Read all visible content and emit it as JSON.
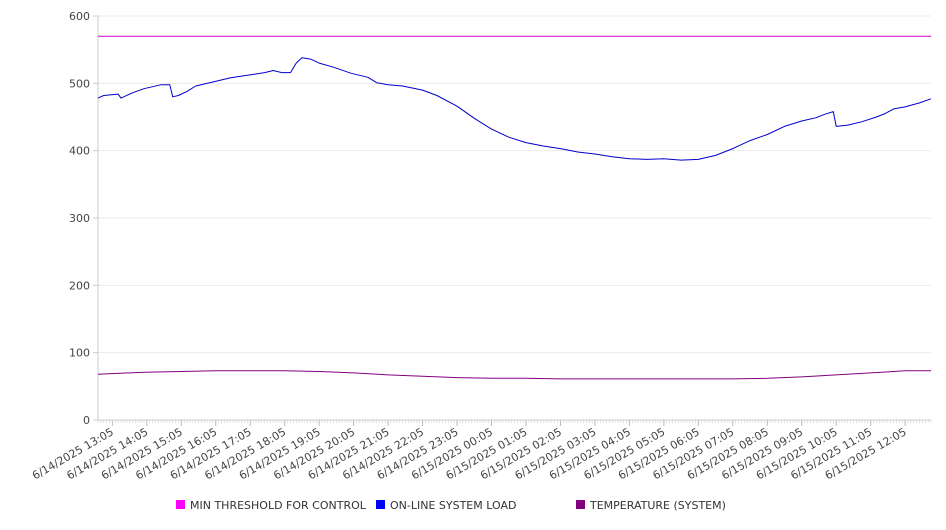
{
  "chart_data": {
    "type": "line",
    "title": "",
    "xlabel": "",
    "ylabel": "",
    "ylim": [
      0,
      600
    ],
    "y_ticks": [
      0,
      100,
      200,
      300,
      400,
      500,
      600
    ],
    "grid": true,
    "legend_position": "bottom",
    "x_start": "6/14/2025 12:40",
    "x_end": "6/15/2025 12:50",
    "x_tick_labels": [
      "6/14/2025 13:05",
      "6/14/2025 14:05",
      "6/14/2025 15:05",
      "6/14/2025 16:05",
      "6/14/2025 17:05",
      "6/14/2025 18:05",
      "6/14/2025 19:05",
      "6/14/2025 20:05",
      "6/14/2025 21:05",
      "6/14/2025 22:05",
      "6/14/2025 23:05",
      "6/15/2025 00:05",
      "6/15/2025 01:05",
      "6/15/2025 02:05",
      "6/15/2025 03:05",
      "6/15/2025 04:05",
      "6/15/2025 05:05",
      "6/15/2025 06:05",
      "6/15/2025 07:05",
      "6/15/2025 08:05",
      "6/15/2025 09:05",
      "6/15/2025 10:05",
      "6/15/2025 11:05",
      "6/15/2025 12:05"
    ],
    "series": [
      {
        "name": "MIN THRESHOLD FOR CONTROL",
        "color": "#cc00cc",
        "legend_color": "#ff00ff",
        "points": [
          [
            "6/14/2025 12:40",
            570
          ],
          [
            "6/15/2025 12:50",
            570
          ]
        ]
      },
      {
        "name": "ON-LINE SYSTEM LOAD",
        "color": "#0000cc",
        "legend_color": "#0000ff",
        "points": [
          [
            "6/14/2025 12:40",
            478
          ],
          [
            "6/14/2025 12:50",
            482
          ],
          [
            "6/14/2025 13:15",
            484
          ],
          [
            "6/14/2025 13:20",
            478
          ],
          [
            "6/14/2025 13:40",
            486
          ],
          [
            "6/14/2025 14:00",
            492
          ],
          [
            "6/14/2025 14:30",
            498
          ],
          [
            "6/14/2025 14:45",
            498
          ],
          [
            "6/14/2025 14:50",
            480
          ],
          [
            "6/14/2025 15:00",
            482
          ],
          [
            "6/14/2025 15:15",
            488
          ],
          [
            "6/14/2025 15:30",
            496
          ],
          [
            "6/14/2025 16:00",
            502
          ],
          [
            "6/14/2025 16:30",
            508
          ],
          [
            "6/14/2025 17:00",
            512
          ],
          [
            "6/14/2025 17:30",
            516
          ],
          [
            "6/14/2025 17:45",
            519
          ],
          [
            "6/14/2025 18:00",
            516
          ],
          [
            "6/14/2025 18:15",
            516
          ],
          [
            "6/14/2025 18:25",
            530
          ],
          [
            "6/14/2025 18:35",
            538
          ],
          [
            "6/14/2025 18:50",
            536
          ],
          [
            "6/14/2025 19:05",
            530
          ],
          [
            "6/14/2025 19:30",
            524
          ],
          [
            "6/14/2025 20:00",
            515
          ],
          [
            "6/14/2025 20:30",
            509
          ],
          [
            "6/14/2025 20:45",
            501
          ],
          [
            "6/14/2025 21:05",
            498
          ],
          [
            "6/14/2025 21:30",
            496
          ],
          [
            "6/14/2025 22:05",
            490
          ],
          [
            "6/14/2025 22:30",
            482
          ],
          [
            "6/14/2025 23:05",
            466
          ],
          [
            "6/14/2025 23:35",
            448
          ],
          [
            "6/15/2025 00:05",
            432
          ],
          [
            "6/15/2025 00:35",
            420
          ],
          [
            "6/15/2025 01:05",
            412
          ],
          [
            "6/15/2025 01:35",
            407
          ],
          [
            "6/15/2025 02:05",
            403
          ],
          [
            "6/15/2025 02:35",
            398
          ],
          [
            "6/15/2025 03:05",
            395
          ],
          [
            "6/15/2025 03:35",
            391
          ],
          [
            "6/15/2025 04:05",
            388
          ],
          [
            "6/15/2025 04:35",
            387
          ],
          [
            "6/15/2025 05:05",
            388
          ],
          [
            "6/15/2025 05:35",
            386
          ],
          [
            "6/15/2025 06:05",
            387
          ],
          [
            "6/15/2025 06:35",
            393
          ],
          [
            "6/15/2025 07:05",
            403
          ],
          [
            "6/15/2025 07:35",
            415
          ],
          [
            "6/15/2025 08:05",
            424
          ],
          [
            "6/15/2025 08:35",
            436
          ],
          [
            "6/15/2025 09:05",
            444
          ],
          [
            "6/15/2025 09:30",
            449
          ],
          [
            "6/15/2025 09:45",
            454
          ],
          [
            "6/15/2025 10:00",
            458
          ],
          [
            "6/15/2025 10:05",
            436
          ],
          [
            "6/15/2025 10:25",
            438
          ],
          [
            "6/15/2025 10:50",
            443
          ],
          [
            "6/15/2025 11:15",
            450
          ],
          [
            "6/15/2025 11:30",
            455
          ],
          [
            "6/15/2025 11:45",
            462
          ],
          [
            "6/15/2025 12:05",
            465
          ],
          [
            "6/15/2025 12:30",
            471
          ],
          [
            "6/15/2025 12:50",
            477
          ]
        ]
      },
      {
        "name": "TEMPERATURE (SYSTEM)",
        "color": "#800080",
        "legend_color": "#800080",
        "points": [
          [
            "6/14/2025 12:40",
            68
          ],
          [
            "6/14/2025 14:00",
            71
          ],
          [
            "6/14/2025 15:05",
            72
          ],
          [
            "6/14/2025 16:05",
            73
          ],
          [
            "6/14/2025 17:05",
            73
          ],
          [
            "6/14/2025 18:05",
            73
          ],
          [
            "6/14/2025 19:05",
            72
          ],
          [
            "6/14/2025 20:05",
            70
          ],
          [
            "6/14/2025 21:05",
            67
          ],
          [
            "6/14/2025 22:05",
            65
          ],
          [
            "6/14/2025 23:05",
            63
          ],
          [
            "6/15/2025 00:05",
            62
          ],
          [
            "6/15/2025 01:05",
            62
          ],
          [
            "6/15/2025 02:05",
            61
          ],
          [
            "6/15/2025 03:05",
            61
          ],
          [
            "6/15/2025 04:05",
            61
          ],
          [
            "6/15/2025 05:05",
            61
          ],
          [
            "6/15/2025 06:05",
            61
          ],
          [
            "6/15/2025 07:05",
            61
          ],
          [
            "6/15/2025 08:05",
            62
          ],
          [
            "6/15/2025 09:05",
            64
          ],
          [
            "6/15/2025 10:05",
            67
          ],
          [
            "6/15/2025 11:05",
            70
          ],
          [
            "6/15/2025 12:05",
            73
          ],
          [
            "6/15/2025 12:50",
            73
          ]
        ]
      }
    ]
  }
}
